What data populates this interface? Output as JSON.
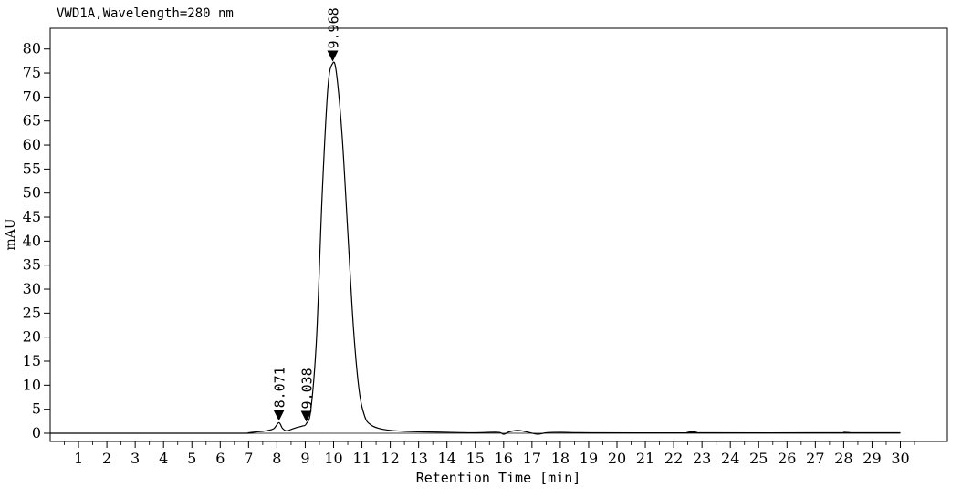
{
  "chart_data": {
    "type": "line",
    "title": "VWD1A,Wavelength=280 nm",
    "xlabel": "Retention Time [min]",
    "ylabel": "mAU",
    "xlim": [
      0,
      30.6
    ],
    "ylim": [
      -2,
      84
    ],
    "x_ticks": [
      1,
      2,
      3,
      4,
      5,
      6,
      7,
      8,
      9,
      10,
      11,
      12,
      13,
      14,
      15,
      16,
      17,
      18,
      19,
      20,
      21,
      22,
      23,
      24,
      25,
      26,
      27,
      28,
      29,
      30
    ],
    "y_ticks": [
      0,
      5,
      10,
      15,
      20,
      25,
      30,
      35,
      40,
      45,
      50,
      55,
      60,
      65,
      70,
      75,
      80
    ],
    "grid": false,
    "series": [
      {
        "x": [
          0,
          6.5,
          7.0,
          7.3,
          7.5,
          7.7,
          7.9,
          8.071,
          8.2,
          8.35,
          8.5,
          8.7,
          8.9,
          9.038,
          9.2,
          9.4,
          9.6,
          9.8,
          9.968,
          10.1,
          10.3,
          10.5,
          10.7,
          10.9,
          11.1,
          11.3,
          11.6,
          12.0,
          12.5,
          13.0,
          14.0,
          15.0,
          15.8,
          16.0,
          16.2,
          16.5,
          16.8,
          17.2,
          17.5,
          18.0,
          19.0,
          22.5,
          22.7,
          22.9,
          27.8,
          28.0,
          28.2,
          30.0
        ],
        "y": [
          0,
          0,
          0.1,
          0.3,
          0.4,
          0.6,
          1.0,
          2.2,
          1.0,
          0.5,
          0.8,
          1.2,
          1.5,
          2.0,
          5.0,
          20.0,
          50.0,
          72.0,
          77.0,
          75.0,
          62.0,
          42.0,
          22.0,
          9.0,
          3.5,
          1.8,
          1.0,
          0.6,
          0.4,
          0.3,
          0.2,
          0.1,
          0.2,
          -0.2,
          0.3,
          0.6,
          0.3,
          -0.2,
          0.1,
          0.2,
          0.1,
          0.1,
          0.3,
          0.1,
          0.1,
          0.2,
          0.1,
          0.1
        ]
      }
    ],
    "peaks": [
      {
        "label": "8.071",
        "x": 8.071,
        "y": 2.2
      },
      {
        "label": "9.038",
        "x": 9.038,
        "y": 2.0
      },
      {
        "label": "9.968",
        "x": 9.968,
        "y": 77.0
      }
    ]
  }
}
